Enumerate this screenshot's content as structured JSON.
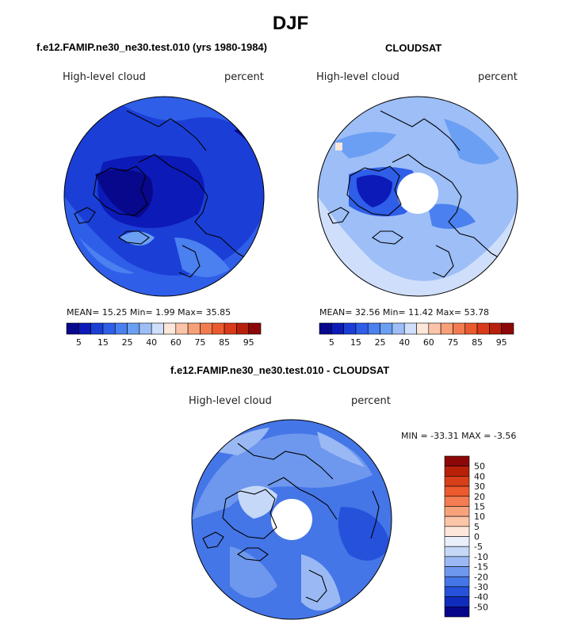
{
  "season": "DJF",
  "panels": {
    "model": {
      "title": "f.e12.FAMIP.ne30_ne30.test.010 (yrs 1980-1984)",
      "variable": "High-level cloud",
      "units": "percent",
      "stats": "MEAN=  15.25  Min=   1.99  Max=  35.85",
      "colorbar_labels": [
        "5",
        "15",
        "25",
        "40",
        "60",
        "75",
        "85",
        "95"
      ]
    },
    "obs": {
      "title": "CLOUDSAT",
      "variable": "High-level cloud",
      "units": "percent",
      "stats": "MEAN=  32.56  Min=  11.42  Max=  53.78",
      "colorbar_labels": [
        "5",
        "15",
        "25",
        "40",
        "60",
        "75",
        "85",
        "95"
      ]
    },
    "diff": {
      "title": "f.e12.FAMIP.ne30_ne30.test.010 - CLOUDSAT",
      "variable": "High-level cloud",
      "units": "percent",
      "minmax": "MIN = -33.31  MAX =  -3.56",
      "colorbar_labels": [
        "50",
        "40",
        "30",
        "20",
        "15",
        "10",
        "5",
        "0",
        "-5",
        "-10",
        "-15",
        "-20",
        "-30",
        "-40",
        "-50"
      ]
    }
  },
  "colors": {
    "abs_scale": [
      "#08088c",
      "#0c1ab8",
      "#1b3fd6",
      "#2f5ee8",
      "#4a80ef",
      "#6b9ff3",
      "#9dbef7",
      "#cfdffb",
      "#fde6da",
      "#fbc4a8",
      "#f7a078",
      "#f27c50",
      "#ea5a2e",
      "#d93a1a",
      "#b8200c",
      "#8c0808"
    ],
    "diff_scale": [
      "#8c0808",
      "#b82008",
      "#d93e1a",
      "#ec5a2e",
      "#f37c52",
      "#f8a27c",
      "#fbc6a8",
      "#fde6da",
      "#e9f0fb",
      "#c5d8f8",
      "#9ab9f4",
      "#6e98ee",
      "#4576e7",
      "#2652db",
      "#0f2cbd",
      "#06068a"
    ]
  }
}
